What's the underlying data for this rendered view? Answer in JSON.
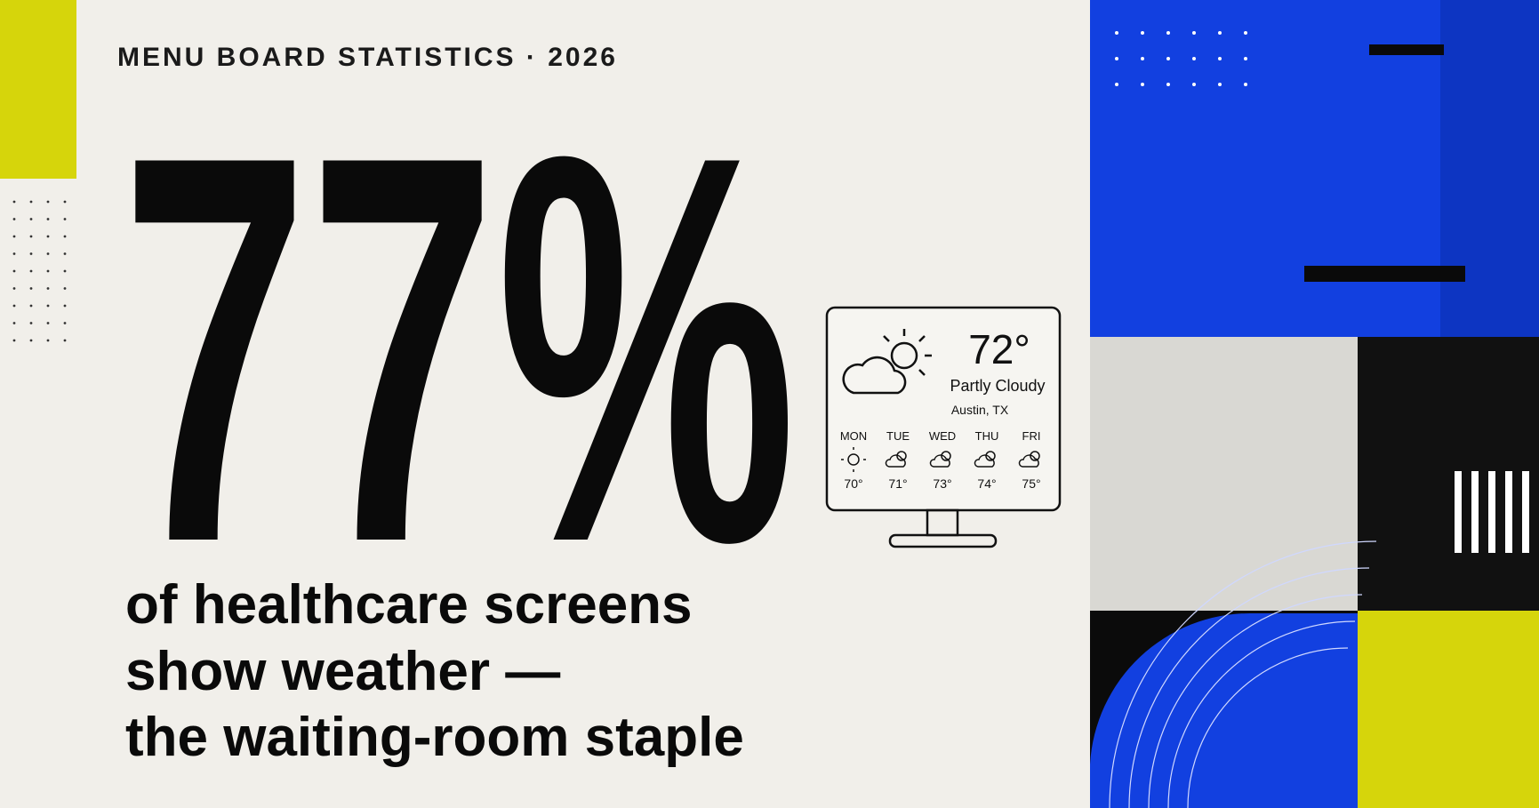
{
  "header": {
    "eyebrow": "MENU BOARD STATISTICS · 2026"
  },
  "stat": {
    "value": "77%",
    "caption": [
      "of healthcare screens",
      "show weather —",
      "the waiting-room staple"
    ]
  },
  "widget": {
    "temperature": "72°",
    "condition": "Partly Cloudy",
    "location": "Austin, TX",
    "forecast": [
      {
        "day": "MON",
        "temp": "70°"
      },
      {
        "day": "TUE",
        "temp": "71°"
      },
      {
        "day": "WED",
        "temp": "73°"
      },
      {
        "day": "THU",
        "temp": "74°"
      },
      {
        "day": "FRI",
        "temp": "75°"
      }
    ]
  }
}
